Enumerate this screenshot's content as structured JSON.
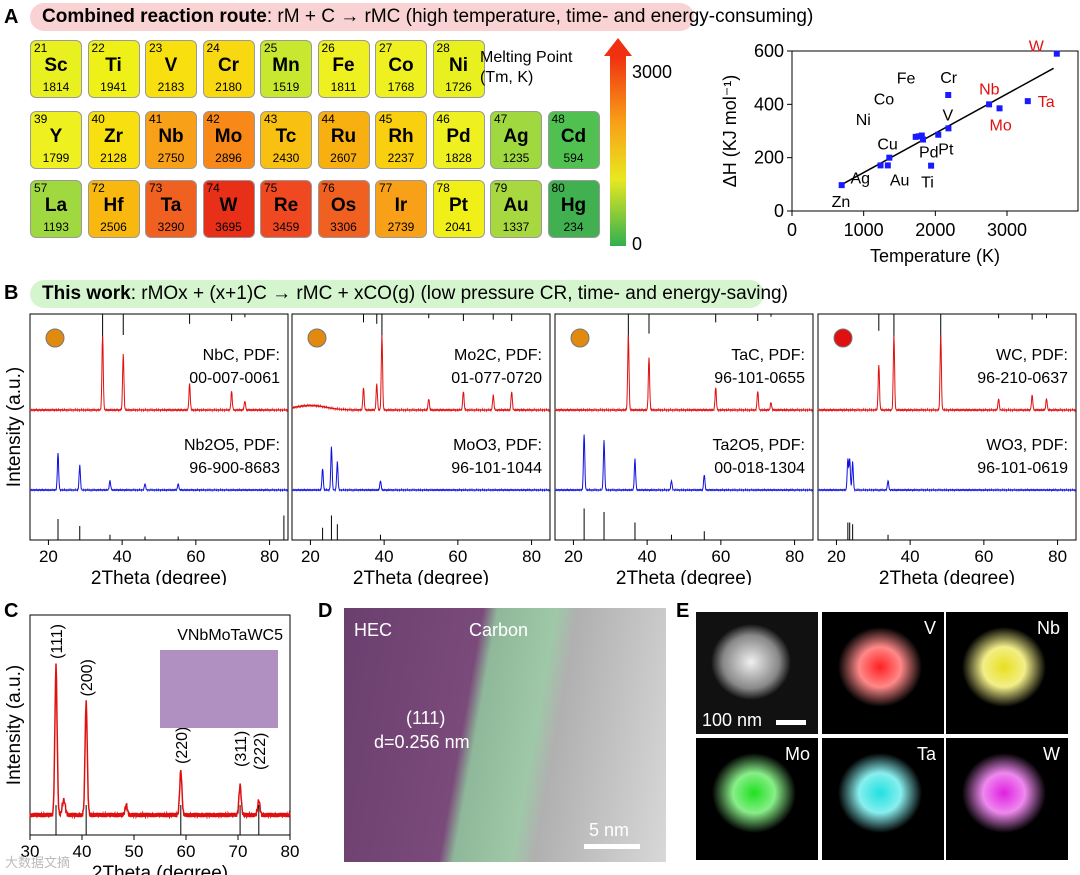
{
  "panel_a": {
    "label": "A",
    "banner_bold": "Combined reaction route",
    "banner_rest": ": rM + C → rMC (high temperature, time- and energy-consuming)",
    "mp_label": "Melting Point",
    "mp_unit": "(Tm, K)",
    "colorbar_max": "3000",
    "colorbar_min": "0",
    "elements": [
      [
        [
          "21",
          "Sc",
          "1814",
          "#e8f020"
        ],
        [
          "22",
          "Ti",
          "1941",
          "#eef018"
        ],
        [
          "23",
          "V",
          "2183",
          "#f8e010"
        ],
        [
          "24",
          "Cr",
          "2180",
          "#f8d810"
        ],
        [
          "25",
          "Mn",
          "1519",
          "#c8e830"
        ],
        [
          "26",
          "Fe",
          "1811",
          "#eef020"
        ],
        [
          "27",
          "Co",
          "1768",
          "#eef020"
        ],
        [
          "28",
          "Ni",
          "1726",
          "#e8f020"
        ]
      ],
      [
        [
          "39",
          "Y",
          "1799",
          "#eef020"
        ],
        [
          "40",
          "Zr",
          "2128",
          "#f8e010"
        ],
        [
          "41",
          "Nb",
          "2750",
          "#f8a018"
        ],
        [
          "42",
          "Mo",
          "2896",
          "#f88818"
        ],
        [
          "43",
          "Tc",
          "2430",
          "#f8c010"
        ],
        [
          "44",
          "Ru",
          "2607",
          "#f8b010"
        ],
        [
          "45",
          "Rh",
          "2237",
          "#f8d010"
        ],
        [
          "46",
          "Pd",
          "1828",
          "#eef020"
        ],
        [
          "47",
          "Ag",
          "1235",
          "#a0d840"
        ],
        [
          "48",
          "Cd",
          "594",
          "#50c050"
        ]
      ],
      [
        [
          "57",
          "La",
          "1193",
          "#a0d840"
        ],
        [
          "72",
          "Hf",
          "2506",
          "#f8b810"
        ],
        [
          "73",
          "Ta",
          "3290",
          "#f06020"
        ],
        [
          "74",
          "W",
          "3695",
          "#e83018"
        ],
        [
          "75",
          "Re",
          "3459",
          "#f04820"
        ],
        [
          "76",
          "Os",
          "3306",
          "#f06020"
        ],
        [
          "77",
          "Ir",
          "2739",
          "#f8a018"
        ],
        [
          "78",
          "Pt",
          "2041",
          "#f0f018"
        ],
        [
          "79",
          "Au",
          "1337",
          "#a8d840"
        ],
        [
          "80",
          "Hg",
          "234",
          "#40b050"
        ]
      ]
    ]
  },
  "chart_data": [
    {
      "type": "scatter",
      "title": "",
      "xlabel": "Temperature (K)",
      "ylabel": "ΔH (KJ mol⁻¹)",
      "xlim": [
        0,
        3900
      ],
      "ylim": [
        0,
        600
      ],
      "xticks": [
        "0",
        "1000",
        "2000",
        "3000"
      ],
      "yticks": [
        "0",
        "200",
        "400",
        "600"
      ],
      "points": [
        {
          "label": "Zn",
          "x": 693,
          "y": 97
        },
        {
          "label": "Ag",
          "x": 1235,
          "y": 171
        },
        {
          "label": "Au",
          "x": 1337,
          "y": 171
        },
        {
          "label": "Cu",
          "x": 1358,
          "y": 200
        },
        {
          "label": "Ni",
          "x": 1726,
          "y": 278
        },
        {
          "label": "Co",
          "x": 1768,
          "y": 280
        },
        {
          "label": "Fe",
          "x": 1811,
          "y": 283
        },
        {
          "label": "Pd",
          "x": 1828,
          "y": 268
        },
        {
          "label": "Pt",
          "x": 2041,
          "y": 286
        },
        {
          "label": "V",
          "x": 2183,
          "y": 310
        },
        {
          "label": "Cr",
          "x": 2180,
          "y": 435
        },
        {
          "label": "Ti",
          "x": 1941,
          "y": 170
        },
        {
          "label": "Nb",
          "x": 2750,
          "y": 400,
          "highlight": true
        },
        {
          "label": "Mo",
          "x": 2896,
          "y": 385,
          "highlight": true
        },
        {
          "label": "Ta",
          "x": 3290,
          "y": 412,
          "highlight": true
        },
        {
          "label": "W",
          "x": 3695,
          "y": 590,
          "highlight": true
        }
      ],
      "fit": [
        [
          700,
          100
        ],
        [
          3650,
          535
        ]
      ]
    },
    {
      "type": "line",
      "panel": "B",
      "xlabel": "2Theta (degree)",
      "ylabel": "Intensity (a.u.)",
      "xlim": [
        15,
        85
      ],
      "xticks": [
        "20",
        "40",
        "60",
        "80"
      ],
      "subplots": [
        {
          "carbide": "NbC, PDF:",
          "carbide_pdf": "00-007-0061",
          "oxide": "Nb2O5, PDF:",
          "oxide_pdf": "96-900-8683",
          "carbide_peaks": [
            [
              34.7,
              1
            ],
            [
              40.3,
              0.75
            ],
            [
              58.3,
              0.35
            ],
            [
              69.7,
              0.25
            ],
            [
              73.3,
              0.12
            ]
          ],
          "oxide_peaks": [
            [
              22.6,
              0.6
            ],
            [
              28.5,
              0.4
            ],
            [
              36.7,
              0.15
            ],
            [
              46.2,
              0.1
            ],
            [
              55.2,
              0.1
            ]
          ]
        },
        {
          "carbide": "Mo2C, PDF:",
          "carbide_pdf": "01-077-0720",
          "oxide": "MoO3, PDF:",
          "oxide_pdf": "96-101-1044",
          "carbide_peaks": [
            [
              34.4,
              0.3
            ],
            [
              38,
              0.35
            ],
            [
              39.4,
              1
            ],
            [
              52.1,
              0.15
            ],
            [
              61.5,
              0.25
            ],
            [
              69.6,
              0.2
            ],
            [
              74.6,
              0.25
            ]
          ],
          "oxide_peaks": [
            [
              12.8,
              0.7
            ],
            [
              23.3,
              0.35
            ],
            [
              25.7,
              0.7
            ],
            [
              27.3,
              0.45
            ],
            [
              39,
              0.15
            ]
          ]
        },
        {
          "carbide": "TaC, PDF:",
          "carbide_pdf": "96-101-0655",
          "oxide": "Ta2O5, PDF:",
          "oxide_pdf": "00-018-1304",
          "carbide_peaks": [
            [
              34.9,
              1
            ],
            [
              40.5,
              0.7
            ],
            [
              58.6,
              0.3
            ],
            [
              70,
              0.25
            ],
            [
              73.6,
              0.1
            ]
          ],
          "oxide_peaks": [
            [
              22.9,
              0.9
            ],
            [
              28.3,
              0.8
            ],
            [
              36.7,
              0.5
            ],
            [
              46.6,
              0.15
            ],
            [
              55.5,
              0.25
            ]
          ]
        },
        {
          "carbide": "WC, PDF:",
          "carbide_pdf": "96-210-0637",
          "oxide": "WO3, PDF:",
          "oxide_pdf": "96-101-0619",
          "carbide_peaks": [
            [
              31.5,
              0.6
            ],
            [
              35.6,
              1
            ],
            [
              48.3,
              1
            ],
            [
              64,
              0.15
            ],
            [
              73.1,
              0.2
            ],
            [
              77,
              0.15
            ]
          ],
          "oxide_peaks": [
            [
              23.1,
              0.5
            ],
            [
              23.6,
              0.5
            ],
            [
              24.4,
              0.45
            ],
            [
              34,
              0.15
            ]
          ]
        }
      ]
    },
    {
      "type": "line",
      "panel": "C",
      "title": "VNbMoTaWC5",
      "xlabel": "2Theta (degree)",
      "ylabel": "Intensity (a.u.)",
      "xlim": [
        30,
        80
      ],
      "xticks": [
        "30",
        "40",
        "50",
        "60",
        "70",
        "80"
      ],
      "peaks": [
        {
          "label": "(111)",
          "x": 35,
          "y": 1
        },
        {
          "label": "(200)",
          "x": 40.8,
          "y": 0.75
        },
        {
          "label": "(220)",
          "x": 59,
          "y": 0.3
        },
        {
          "label": "(311)",
          "x": 70.4,
          "y": 0.2
        },
        {
          "label": "(222)",
          "x": 74,
          "y": 0.1
        }
      ]
    }
  ],
  "panel_b": {
    "label": "B",
    "banner_bold": "This work",
    "banner_rest": ": rMOx + (x+1)C → rMC + xCO(g) (low pressure CR, time- and energy-saving)"
  },
  "panel_c": {
    "label": "C"
  },
  "panel_d": {
    "label": "D",
    "hec": "HEC",
    "carbon": "Carbon",
    "plane": "(111)",
    "dspacing": "d=0.256 nm",
    "scale": "5 nm"
  },
  "panel_e": {
    "label": "E",
    "scale": "100 nm",
    "maps": [
      [
        "V",
        "#ff2020"
      ],
      [
        "Nb",
        "#e8e020"
      ],
      [
        "Mo",
        "#20e020"
      ],
      [
        "Ta",
        "#20e0e0"
      ],
      [
        "W",
        "#e020e0"
      ]
    ]
  },
  "watermark": "大数据文摘"
}
